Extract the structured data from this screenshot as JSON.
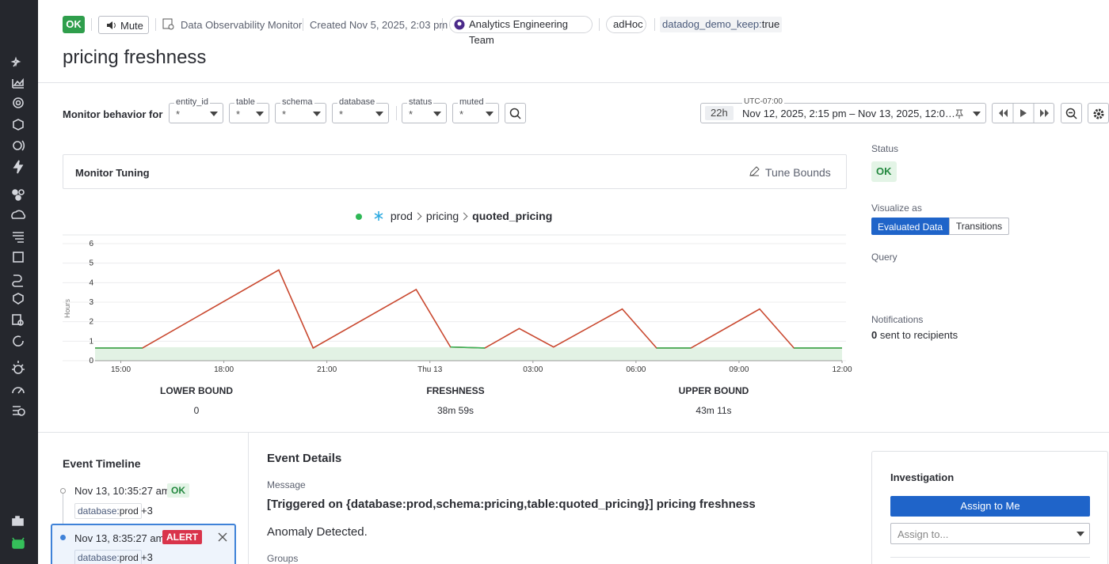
{
  "header": {
    "status": "OK",
    "mute": "Mute",
    "monitor_type": "Data Observability Monitor",
    "created": "Created Nov 5, 2025, 2:03 pm",
    "team": "Analytics Engineering Team",
    "tag_adhoc": "adHoc",
    "tag_key": "datadog_demo_keep:",
    "tag_value": "true",
    "title": "pricing freshness"
  },
  "filters": {
    "label": "Monitor behavior for",
    "items": [
      {
        "label": "entity_id",
        "value": "*"
      },
      {
        "label": "table",
        "value": "*"
      },
      {
        "label": "schema",
        "value": "*"
      },
      {
        "label": "database",
        "value": "*"
      },
      {
        "label": "status",
        "value": "*"
      },
      {
        "label": "muted",
        "value": "*"
      }
    ]
  },
  "time": {
    "span": "22h",
    "timezone": "UTC-07:00",
    "range": "Nov 12, 2025, 2:15 pm – Nov 13, 2025, 12:0…"
  },
  "tuning": {
    "title": "Monitor Tuning",
    "action": "Tune Bounds"
  },
  "breadcrumb": [
    "prod",
    "pricing",
    "quoted_pricing"
  ],
  "chart_data": {
    "type": "line",
    "y_label": "Hours",
    "x": [
      14.25,
      15.63,
      19.6,
      20.6,
      23.6,
      24.6,
      25.6,
      26.6,
      27.6,
      29.6,
      30.6,
      31.6,
      33.6,
      34.6,
      36
    ],
    "series": [
      {
        "color": "#c9482f",
        "values": [
          0.65,
          0.65,
          4.65,
          0.65,
          3.65,
          0.7,
          0.65,
          1.65,
          0.7,
          2.65,
          0.65,
          0.65,
          2.65,
          0.65,
          0.65
        ]
      },
      {
        "color": "#3cb55a",
        "values": [
          0.65,
          0.65,
          null,
          null,
          null,
          0.7,
          0.65,
          null,
          null,
          null,
          0.65,
          0.65,
          null,
          0.65,
          0.65
        ]
      }
    ],
    "band": {
      "color": "#e2f2e4",
      "lower": 0,
      "upper": 0.69
    },
    "xlim": [
      14.25,
      36
    ],
    "xticks": [
      {
        "value": 15,
        "label": "15:00"
      },
      {
        "value": 18,
        "label": "18:00"
      },
      {
        "value": 21,
        "label": "21:00"
      },
      {
        "value": 24,
        "label": "Thu 13"
      },
      {
        "value": 27,
        "label": "03:00"
      },
      {
        "value": 30,
        "label": "06:00"
      },
      {
        "value": 33,
        "label": "09:00"
      },
      {
        "value": 36,
        "label": "12:00"
      }
    ],
    "ylim": [
      0,
      6
    ],
    "yticks": [
      0,
      1,
      2,
      3,
      4,
      5,
      6
    ],
    "grid": true
  },
  "stats": [
    {
      "label": "LOWER BOUND",
      "value": "0"
    },
    {
      "label": "FRESHNESS",
      "value": "38m 59s"
    },
    {
      "label": "UPPER BOUND",
      "value": "43m 11s"
    }
  ],
  "side": {
    "status_label": "Status",
    "status": "OK",
    "visualize_label": "Visualize as",
    "visualize_options": [
      "Evaluated Data",
      "Transitions"
    ],
    "query_label": "Query",
    "notifications_label": "Notifications",
    "notifications_count": "0",
    "notifications_text": "sent to recipients"
  },
  "timeline": {
    "title": "Event Timeline",
    "events": [
      {
        "time": "Nov 13, 10:35:27 am",
        "status": "OK",
        "tag_key": "database:",
        "tag_value": "prod",
        "more": "+3"
      },
      {
        "time": "Nov 13, 8:35:27 am",
        "status": "ALERT",
        "tag_key": "database:",
        "tag_value": "prod",
        "more": "+3"
      }
    ]
  },
  "details": {
    "title": "Event Details",
    "message_label": "Message",
    "message": "[Triggered on {database:prod,schema:pricing,table:quoted_pricing}] pricing freshness",
    "body": "Anomaly Detected.",
    "groups_label": "Groups"
  },
  "investigation": {
    "title": "Investigation",
    "assign_me": "Assign to Me",
    "assign_placeholder": "Assign to..."
  }
}
